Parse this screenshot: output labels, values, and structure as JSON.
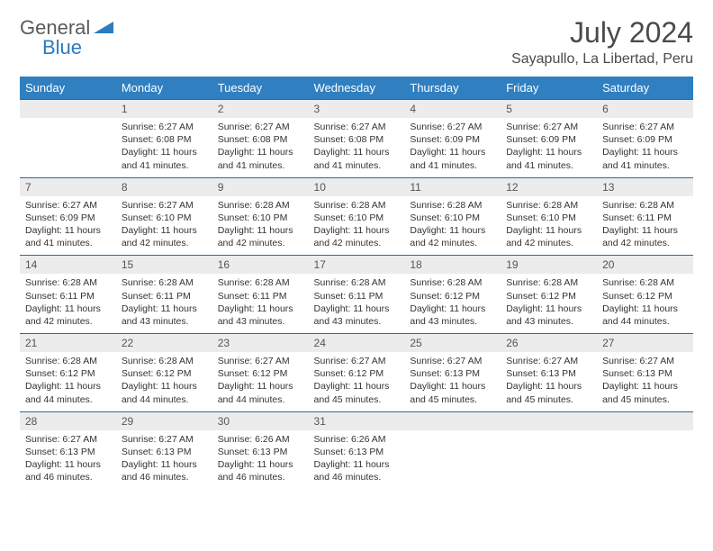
{
  "logo": {
    "general": "General",
    "blue": "Blue"
  },
  "title": "July 2024",
  "location": "Sayapullo, La Libertad, Peru",
  "colors": {
    "header_bg": "#2f7fc1",
    "header_text": "#ffffff",
    "daynum_bg": "#ececec",
    "rule": "#2c6aa0",
    "body_text": "#333333",
    "title_text": "#4a4a4a",
    "logo_gray": "#5a5a5a",
    "logo_blue": "#2b7bbf"
  },
  "fonts": {
    "title_size": 32,
    "location_size": 16,
    "weekday_size": 13,
    "daynum_size": 12,
    "body_size": 10.5
  },
  "weekdays": [
    "Sunday",
    "Monday",
    "Tuesday",
    "Wednesday",
    "Thursday",
    "Friday",
    "Saturday"
  ],
  "weeks": [
    [
      null,
      {
        "n": "1",
        "sr": "Sunrise: 6:27 AM",
        "ss": "Sunset: 6:08 PM",
        "dl": "Daylight: 11 hours and 41 minutes."
      },
      {
        "n": "2",
        "sr": "Sunrise: 6:27 AM",
        "ss": "Sunset: 6:08 PM",
        "dl": "Daylight: 11 hours and 41 minutes."
      },
      {
        "n": "3",
        "sr": "Sunrise: 6:27 AM",
        "ss": "Sunset: 6:08 PM",
        "dl": "Daylight: 11 hours and 41 minutes."
      },
      {
        "n": "4",
        "sr": "Sunrise: 6:27 AM",
        "ss": "Sunset: 6:09 PM",
        "dl": "Daylight: 11 hours and 41 minutes."
      },
      {
        "n": "5",
        "sr": "Sunrise: 6:27 AM",
        "ss": "Sunset: 6:09 PM",
        "dl": "Daylight: 11 hours and 41 minutes."
      },
      {
        "n": "6",
        "sr": "Sunrise: 6:27 AM",
        "ss": "Sunset: 6:09 PM",
        "dl": "Daylight: 11 hours and 41 minutes."
      }
    ],
    [
      {
        "n": "7",
        "sr": "Sunrise: 6:27 AM",
        "ss": "Sunset: 6:09 PM",
        "dl": "Daylight: 11 hours and 41 minutes."
      },
      {
        "n": "8",
        "sr": "Sunrise: 6:27 AM",
        "ss": "Sunset: 6:10 PM",
        "dl": "Daylight: 11 hours and 42 minutes."
      },
      {
        "n": "9",
        "sr": "Sunrise: 6:28 AM",
        "ss": "Sunset: 6:10 PM",
        "dl": "Daylight: 11 hours and 42 minutes."
      },
      {
        "n": "10",
        "sr": "Sunrise: 6:28 AM",
        "ss": "Sunset: 6:10 PM",
        "dl": "Daylight: 11 hours and 42 minutes."
      },
      {
        "n": "11",
        "sr": "Sunrise: 6:28 AM",
        "ss": "Sunset: 6:10 PM",
        "dl": "Daylight: 11 hours and 42 minutes."
      },
      {
        "n": "12",
        "sr": "Sunrise: 6:28 AM",
        "ss": "Sunset: 6:10 PM",
        "dl": "Daylight: 11 hours and 42 minutes."
      },
      {
        "n": "13",
        "sr": "Sunrise: 6:28 AM",
        "ss": "Sunset: 6:11 PM",
        "dl": "Daylight: 11 hours and 42 minutes."
      }
    ],
    [
      {
        "n": "14",
        "sr": "Sunrise: 6:28 AM",
        "ss": "Sunset: 6:11 PM",
        "dl": "Daylight: 11 hours and 42 minutes."
      },
      {
        "n": "15",
        "sr": "Sunrise: 6:28 AM",
        "ss": "Sunset: 6:11 PM",
        "dl": "Daylight: 11 hours and 43 minutes."
      },
      {
        "n": "16",
        "sr": "Sunrise: 6:28 AM",
        "ss": "Sunset: 6:11 PM",
        "dl": "Daylight: 11 hours and 43 minutes."
      },
      {
        "n": "17",
        "sr": "Sunrise: 6:28 AM",
        "ss": "Sunset: 6:11 PM",
        "dl": "Daylight: 11 hours and 43 minutes."
      },
      {
        "n": "18",
        "sr": "Sunrise: 6:28 AM",
        "ss": "Sunset: 6:12 PM",
        "dl": "Daylight: 11 hours and 43 minutes."
      },
      {
        "n": "19",
        "sr": "Sunrise: 6:28 AM",
        "ss": "Sunset: 6:12 PM",
        "dl": "Daylight: 11 hours and 43 minutes."
      },
      {
        "n": "20",
        "sr": "Sunrise: 6:28 AM",
        "ss": "Sunset: 6:12 PM",
        "dl": "Daylight: 11 hours and 44 minutes."
      }
    ],
    [
      {
        "n": "21",
        "sr": "Sunrise: 6:28 AM",
        "ss": "Sunset: 6:12 PM",
        "dl": "Daylight: 11 hours and 44 minutes."
      },
      {
        "n": "22",
        "sr": "Sunrise: 6:28 AM",
        "ss": "Sunset: 6:12 PM",
        "dl": "Daylight: 11 hours and 44 minutes."
      },
      {
        "n": "23",
        "sr": "Sunrise: 6:27 AM",
        "ss": "Sunset: 6:12 PM",
        "dl": "Daylight: 11 hours and 44 minutes."
      },
      {
        "n": "24",
        "sr": "Sunrise: 6:27 AM",
        "ss": "Sunset: 6:12 PM",
        "dl": "Daylight: 11 hours and 45 minutes."
      },
      {
        "n": "25",
        "sr": "Sunrise: 6:27 AM",
        "ss": "Sunset: 6:13 PM",
        "dl": "Daylight: 11 hours and 45 minutes."
      },
      {
        "n": "26",
        "sr": "Sunrise: 6:27 AM",
        "ss": "Sunset: 6:13 PM",
        "dl": "Daylight: 11 hours and 45 minutes."
      },
      {
        "n": "27",
        "sr": "Sunrise: 6:27 AM",
        "ss": "Sunset: 6:13 PM",
        "dl": "Daylight: 11 hours and 45 minutes."
      }
    ],
    [
      {
        "n": "28",
        "sr": "Sunrise: 6:27 AM",
        "ss": "Sunset: 6:13 PM",
        "dl": "Daylight: 11 hours and 46 minutes."
      },
      {
        "n": "29",
        "sr": "Sunrise: 6:27 AM",
        "ss": "Sunset: 6:13 PM",
        "dl": "Daylight: 11 hours and 46 minutes."
      },
      {
        "n": "30",
        "sr": "Sunrise: 6:26 AM",
        "ss": "Sunset: 6:13 PM",
        "dl": "Daylight: 11 hours and 46 minutes."
      },
      {
        "n": "31",
        "sr": "Sunrise: 6:26 AM",
        "ss": "Sunset: 6:13 PM",
        "dl": "Daylight: 11 hours and 46 minutes."
      },
      null,
      null,
      null
    ]
  ]
}
